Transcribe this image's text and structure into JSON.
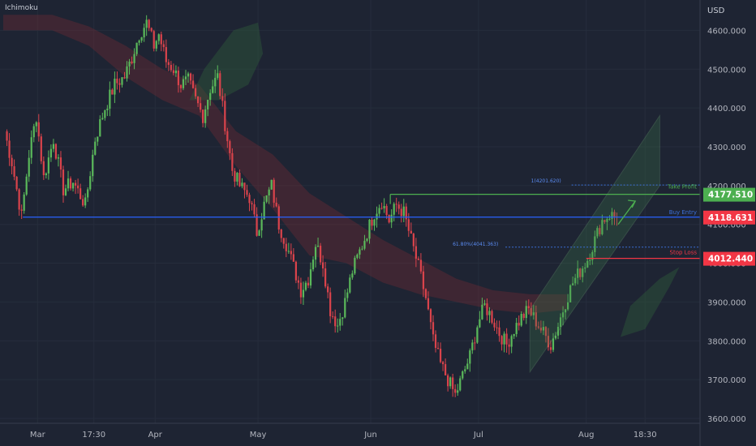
{
  "legend": {
    "indicator": "Ichimoku"
  },
  "currency": "USD",
  "chart_data": {
    "type": "candlestick",
    "ylim": [
      3570,
      4660
    ],
    "y_ticks": [
      3600,
      3700,
      3800,
      3900,
      4000,
      4100,
      4200,
      4300,
      4400,
      4500,
      4600
    ],
    "y_tick_labels": [
      "3600.000",
      "3700.000",
      "3800.000",
      "3900.000",
      "4000.000",
      "4100.000",
      "4200.000",
      "4300.000",
      "4400.000",
      "4500.000",
      "4600.000"
    ],
    "x_labels": [
      {
        "label": "Mar",
        "bar": 14
      },
      {
        "label": "17:30",
        "bar": 37
      },
      {
        "label": "Apr",
        "bar": 62
      },
      {
        "label": "May",
        "bar": 104
      },
      {
        "label": "Jun",
        "bar": 150
      },
      {
        "label": "Jul",
        "bar": 194
      },
      {
        "label": "Aug",
        "bar": 238
      },
      {
        "label": "18:30",
        "bar": 262
      }
    ],
    "bars_total": 285,
    "anchors": [
      [
        0,
        4340
      ],
      [
        3,
        4260
      ],
      [
        7,
        4120
      ],
      [
        10,
        4280
      ],
      [
        13,
        4380
      ],
      [
        16,
        4220
      ],
      [
        20,
        4320
      ],
      [
        24,
        4190
      ],
      [
        28,
        4210
      ],
      [
        33,
        4150
      ],
      [
        37,
        4320
      ],
      [
        41,
        4400
      ],
      [
        45,
        4460
      ],
      [
        49,
        4480
      ],
      [
        52,
        4530
      ],
      [
        55,
        4590
      ],
      [
        58,
        4620
      ],
      [
        61,
        4560
      ],
      [
        63,
        4590
      ],
      [
        66,
        4520
      ],
      [
        69,
        4500
      ],
      [
        72,
        4460
      ],
      [
        75,
        4470
      ],
      [
        78,
        4420
      ],
      [
        81,
        4380
      ],
      [
        84,
        4450
      ],
      [
        87,
        4480
      ],
      [
        90,
        4360
      ],
      [
        93,
        4240
      ],
      [
        96,
        4200
      ],
      [
        100,
        4170
      ],
      [
        103,
        4080
      ],
      [
        106,
        4150
      ],
      [
        109,
        4200
      ],
      [
        112,
        4100
      ],
      [
        115,
        4050
      ],
      [
        118,
        3990
      ],
      [
        121,
        3930
      ],
      [
        124,
        3960
      ],
      [
        127,
        4050
      ],
      [
        130,
        4000
      ],
      [
        133,
        3880
      ],
      [
        136,
        3840
      ],
      [
        139,
        3900
      ],
      [
        142,
        3980
      ],
      [
        145,
        4030
      ],
      [
        148,
        4080
      ],
      [
        151,
        4130
      ],
      [
        154,
        4160
      ],
      [
        157,
        4110
      ],
      [
        160,
        4150
      ],
      [
        163,
        4130
      ],
      [
        166,
        4060
      ],
      [
        169,
        3990
      ],
      [
        172,
        3910
      ],
      [
        175,
        3800
      ],
      [
        178,
        3740
      ],
      [
        181,
        3700
      ],
      [
        184,
        3660
      ],
      [
        187,
        3710
      ],
      [
        190,
        3760
      ],
      [
        193,
        3840
      ],
      [
        196,
        3890
      ],
      [
        199,
        3860
      ],
      [
        202,
        3820
      ],
      [
        205,
        3790
      ],
      [
        208,
        3830
      ],
      [
        211,
        3860
      ],
      [
        214,
        3880
      ],
      [
        217,
        3850
      ],
      [
        220,
        3820
      ],
      [
        223,
        3790
      ],
      [
        226,
        3840
      ],
      [
        229,
        3900
      ],
      [
        232,
        3950
      ],
      [
        235,
        3980
      ],
      [
        238,
        4010
      ],
      [
        241,
        4060
      ],
      [
        244,
        4110
      ],
      [
        247,
        4125
      ],
      [
        250,
        4118
      ]
    ],
    "ichimoku_cloud_red": [
      [
        0,
        4600,
        4640
      ],
      [
        20,
        4600,
        4640
      ],
      [
        35,
        4560,
        4610
      ],
      [
        50,
        4480,
        4560
      ],
      [
        65,
        4420,
        4500
      ],
      [
        80,
        4380,
        4460
      ],
      [
        95,
        4250,
        4340
      ],
      [
        110,
        4140,
        4280
      ],
      [
        125,
        4020,
        4180
      ],
      [
        140,
        4000,
        4120
      ],
      [
        155,
        3950,
        4060
      ],
      [
        170,
        3920,
        4010
      ],
      [
        185,
        3900,
        3960
      ],
      [
        200,
        3880,
        3930
      ],
      [
        215,
        3870,
        3920
      ],
      [
        230,
        3880,
        3920
      ]
    ],
    "annotations": {
      "take_profit": {
        "label": "Take Profit",
        "value": 4177.51,
        "value_label": "4177.510",
        "from_bar": 158
      },
      "buy_entry": {
        "label": "Buy Entry",
        "value": 4118.631,
        "value_label": "4118.631",
        "from_bar": 8
      },
      "stop_loss": {
        "label": "Stop Loss",
        "value": 4012.44,
        "value_label": "4012.440",
        "from_bar": 238
      },
      "fib_100": {
        "label": "1(4201.620)",
        "value": 4201.62,
        "from_bar": 232
      },
      "fib_618": {
        "label": "61.80%(4041.363)",
        "value": 4041.363,
        "from_bar": 205
      }
    },
    "channel": {
      "lower": [
        [
          215,
          3720
        ],
        [
          268,
          4200
        ]
      ],
      "upper": [
        [
          215,
          3880
        ],
        [
          268,
          4380
        ]
      ]
    },
    "arrow": {
      "from": [
        251,
        4100
      ],
      "to": [
        258,
        4160
      ]
    }
  }
}
